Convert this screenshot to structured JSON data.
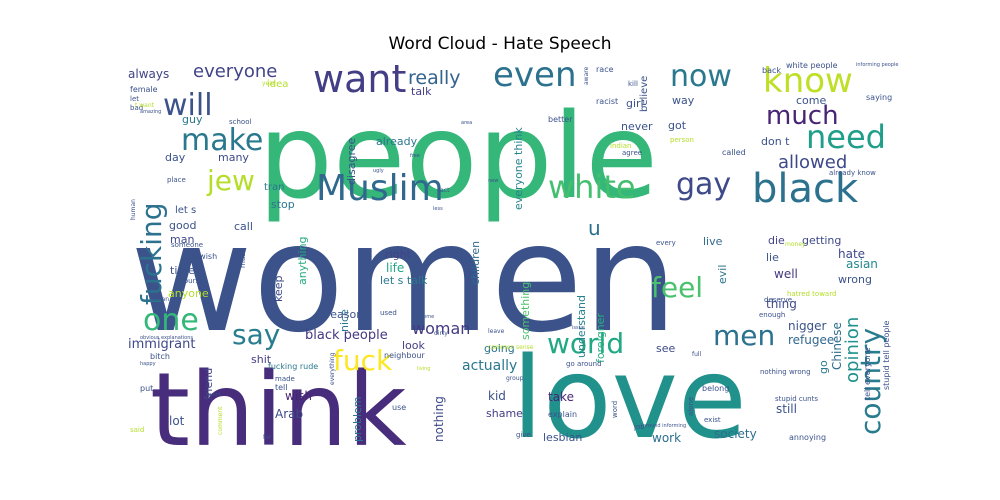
{
  "chart_data": {
    "type": "wordcloud",
    "title": "Word Cloud - Hate Speech",
    "words": [
      {
        "text": "women",
        "weight": 200,
        "color": "#3b528b"
      },
      {
        "text": "people",
        "weight": 190,
        "color": "#35b779"
      },
      {
        "text": "love",
        "weight": 130,
        "color": "#21918c"
      },
      {
        "text": "think",
        "weight": 125,
        "color": "#472d7b"
      },
      {
        "text": "want",
        "weight": 40,
        "color": "#433e85"
      },
      {
        "text": "Muslim",
        "weight": 38,
        "color": "#31688e"
      },
      {
        "text": "even",
        "weight": 36,
        "color": "#2c728e"
      },
      {
        "text": "black",
        "weight": 40,
        "color": "#2c728e"
      },
      {
        "text": "white",
        "weight": 34,
        "color": "#44bf70"
      },
      {
        "text": "gay",
        "weight": 33,
        "color": "#3e4a89"
      },
      {
        "text": "know",
        "weight": 36,
        "color": "#bddf26"
      },
      {
        "text": "now",
        "weight": 32,
        "color": "#2a788e"
      },
      {
        "text": "will",
        "weight": 32,
        "color": "#3b528b"
      },
      {
        "text": "make",
        "weight": 32,
        "color": "#2a788e"
      },
      {
        "text": "jew",
        "weight": 30,
        "color": "#b5de2b"
      },
      {
        "text": "need",
        "weight": 34,
        "color": "#1f9e89"
      },
      {
        "text": "much",
        "weight": 28,
        "color": "#482475"
      },
      {
        "text": "fucking",
        "weight": 30,
        "color": "#2c728e"
      },
      {
        "text": "one",
        "weight": 32,
        "color": "#35b779"
      },
      {
        "text": "say",
        "weight": 30,
        "color": "#287d8e"
      },
      {
        "text": "fuck",
        "weight": 30,
        "color": "#fde725"
      },
      {
        "text": "world",
        "weight": 30,
        "color": "#22a884"
      },
      {
        "text": "men",
        "weight": 30,
        "color": "#2c728e"
      },
      {
        "text": "feel",
        "weight": 30,
        "color": "#4ac16d"
      },
      {
        "text": "country",
        "weight": 30,
        "color": "#297b8e"
      },
      {
        "text": "really",
        "weight": 20,
        "color": "#33638d"
      },
      {
        "text": "everyone",
        "weight": 19,
        "color": "#414487"
      },
      {
        "text": "allowed",
        "weight": 19,
        "color": "#3e4989"
      },
      {
        "text": "woman",
        "weight": 17,
        "color": "#443a83"
      },
      {
        "text": "u",
        "weight": 22,
        "color": "#2d708e"
      },
      {
        "text": "opinion",
        "weight": 19,
        "color": "#21918c"
      },
      {
        "text": "immigrant",
        "weight": 14,
        "color": "#3e4989"
      },
      {
        "text": "black people",
        "weight": 14,
        "color": "#453781"
      },
      {
        "text": "actually",
        "weight": 15,
        "color": "#2a788e"
      },
      {
        "text": "refugee",
        "weight": 13,
        "color": "#31688e"
      },
      {
        "text": "always",
        "weight": 13,
        "color": "#414487"
      },
      {
        "text": "nigger",
        "weight": 13,
        "color": "#3b528b"
      },
      {
        "text": "Chinese",
        "weight": 13,
        "color": "#2e6e8e"
      },
      {
        "text": "foreigner",
        "weight": 12,
        "color": "#29af7f"
      },
      {
        "text": "understand",
        "weight": 12,
        "color": "#26828e"
      },
      {
        "text": "children",
        "weight": 12,
        "color": "#2f6c8e"
      },
      {
        "text": "something",
        "weight": 12,
        "color": "#4ac16d"
      },
      {
        "text": "disagree",
        "weight": 12,
        "color": "#3b528b"
      },
      {
        "text": "everyone think",
        "weight": 12,
        "color": "#25848e"
      },
      {
        "text": "anything",
        "weight": 12,
        "color": "#25ab82"
      },
      {
        "text": "problem",
        "weight": 12,
        "color": "#2c728e"
      },
      {
        "text": "nothing",
        "weight": 13,
        "color": "#3e4a89"
      },
      {
        "text": "society",
        "weight": 13,
        "color": "#2e6e8e"
      },
      {
        "text": "lesbian",
        "weight": 12,
        "color": "#3b528b"
      },
      {
        "text": "getting",
        "weight": 12,
        "color": "#3e4989"
      },
      {
        "text": "asian",
        "weight": 13,
        "color": "#23898e"
      },
      {
        "text": "wrong",
        "weight": 12,
        "color": "#3b528b"
      },
      {
        "text": "talk",
        "weight": 12,
        "color": "#433e85"
      },
      {
        "text": "let s talk",
        "weight": 12,
        "color": "#2a788e"
      },
      {
        "text": "life",
        "weight": 13,
        "color": "#22a884"
      },
      {
        "text": "right",
        "weight": 12,
        "color": "#414487"
      },
      {
        "text": "nice",
        "weight": 12,
        "color": "#2a788e"
      },
      {
        "text": "reason",
        "weight": 12,
        "color": "#3b528b"
      },
      {
        "text": "going",
        "weight": 12,
        "color": "#2c728e"
      },
      {
        "text": "look",
        "weight": 12,
        "color": "#433e85"
      },
      {
        "text": "see",
        "weight": 12,
        "color": "#3e4989"
      },
      {
        "text": "go",
        "weight": 12,
        "color": "#2a788e"
      },
      {
        "text": "thing",
        "weight": 13,
        "color": "#3e4989"
      },
      {
        "text": "lie",
        "weight": 12,
        "color": "#3b528b"
      },
      {
        "text": "well",
        "weight": 13,
        "color": "#453781"
      },
      {
        "text": "die",
        "weight": 12,
        "color": "#414487"
      },
      {
        "text": "live",
        "weight": 12,
        "color": "#31688e"
      },
      {
        "text": "evil",
        "weight": 12,
        "color": "#2c728e"
      },
      {
        "text": "hate",
        "weight": 13,
        "color": "#3e4989"
      },
      {
        "text": "still",
        "weight": 13,
        "color": "#3b528b"
      },
      {
        "text": "work",
        "weight": 13,
        "color": "#2e6e8e"
      },
      {
        "text": "take",
        "weight": 13,
        "color": "#482475"
      },
      {
        "text": "kid",
        "weight": 13,
        "color": "#3b528b"
      },
      {
        "text": "shame",
        "weight": 12,
        "color": "#433e85"
      },
      {
        "text": "wish",
        "weight": 13,
        "color": "#482475"
      },
      {
        "text": "Arab",
        "weight": 13,
        "color": "#3e4a89"
      },
      {
        "text": "lot",
        "weight": 13,
        "color": "#3b528b"
      },
      {
        "text": "friend",
        "weight": 12,
        "color": "#414487"
      },
      {
        "text": "shit",
        "weight": 12,
        "color": "#433e85"
      },
      {
        "text": "anyone",
        "weight": 12,
        "color": "#b5de2b"
      },
      {
        "text": "time",
        "weight": 12,
        "color": "#3b528b"
      },
      {
        "text": "man",
        "weight": 12,
        "color": "#3e4989"
      },
      {
        "text": "good",
        "weight": 12,
        "color": "#3b528b"
      },
      {
        "text": "call",
        "weight": 12,
        "color": "#3b528b"
      },
      {
        "text": "stop",
        "weight": 12,
        "color": "#2a788e"
      },
      {
        "text": "keep",
        "weight": 12,
        "color": "#3e4989"
      },
      {
        "text": "day",
        "weight": 12,
        "color": "#3b528b"
      },
      {
        "text": "many",
        "weight": 12,
        "color": "#3e4989"
      },
      {
        "text": "guy",
        "weight": 12,
        "color": "#2a788e"
      },
      {
        "text": "idea",
        "weight": 11,
        "color": "#b5de2b"
      },
      {
        "text": "tran",
        "weight": 11,
        "color": "#2a788e"
      },
      {
        "text": "already",
        "weight": 12,
        "color": "#2a788e"
      },
      {
        "text": "way",
        "weight": 12,
        "color": "#3b528b"
      },
      {
        "text": "girl",
        "weight": 12,
        "color": "#3b528b"
      },
      {
        "text": "got",
        "weight": 12,
        "color": "#3b528b"
      },
      {
        "text": "never",
        "weight": 12,
        "color": "#3b528b"
      },
      {
        "text": "believe",
        "weight": 11,
        "color": "#3b528b"
      },
      {
        "text": "come",
        "weight": 12,
        "color": "#3b528b"
      },
      {
        "text": "don t",
        "weight": 12,
        "color": "#3b528b"
      },
      {
        "text": "let s",
        "weight": 11,
        "color": "#3b528b"
      },
      {
        "text": "jewish",
        "weight": 8,
        "color": "#3b528b"
      },
      {
        "text": "fucking rude",
        "weight": 8,
        "color": "#2a788e"
      },
      {
        "text": "racist",
        "weight": 8,
        "color": "#3b528b"
      },
      {
        "text": "white people",
        "weight": 8,
        "color": "#3b528b"
      },
      {
        "text": "saying",
        "weight": 8,
        "color": "#3b528b"
      },
      {
        "text": "female",
        "weight": 8,
        "color": "#3b528b"
      },
      {
        "text": "race",
        "weight": 8,
        "color": "#3b528b"
      },
      {
        "text": "back",
        "weight": 8,
        "color": "#3b528b"
      },
      {
        "text": "better",
        "weight": 8,
        "color": "#3b528b"
      },
      {
        "text": "called",
        "weight": 8,
        "color": "#3b528b"
      },
      {
        "text": "neighbour",
        "weight": 8,
        "color": "#3b528b"
      },
      {
        "text": "used",
        "weight": 7,
        "color": "#3b528b"
      },
      {
        "text": "explain",
        "weight": 8,
        "color": "#3b528b"
      },
      {
        "text": "use",
        "weight": 8,
        "color": "#3b528b"
      },
      {
        "text": "annoying",
        "weight": 8,
        "color": "#3b528b"
      },
      {
        "text": "stupid tell people",
        "weight": 8,
        "color": "#3b528b"
      },
      {
        "text": "tell everyone",
        "weight": 8,
        "color": "#3b528b"
      },
      {
        "text": "belong",
        "weight": 8,
        "color": "#3b528b"
      },
      {
        "text": "enough",
        "weight": 7,
        "color": "#3b528b"
      },
      {
        "text": "deserve",
        "weight": 7,
        "color": "#3b528b"
      },
      {
        "text": "nothing wrong",
        "weight": 7,
        "color": "#3b528b"
      },
      {
        "text": "hatred toward",
        "weight": 7,
        "color": "#b5de2b"
      },
      {
        "text": "already know",
        "weight": 7,
        "color": "#3b528b"
      },
      {
        "text": "stupid cunts",
        "weight": 7,
        "color": "#3b528b"
      },
      {
        "text": "bitch",
        "weight": 8,
        "color": "#3b528b"
      },
      {
        "text": "someone",
        "weight": 7,
        "color": "#3b528b"
      },
      {
        "text": "course",
        "weight": 7,
        "color": "#3b528b"
      },
      {
        "text": "must",
        "weight": 7,
        "color": "#3b528b"
      },
      {
        "text": "place",
        "weight": 7,
        "color": "#3b528b"
      },
      {
        "text": "school",
        "weight": 7,
        "color": "#3b528b"
      },
      {
        "text": "tell",
        "weight": 8,
        "color": "#3b528b"
      },
      {
        "text": "made",
        "weight": 7,
        "color": "#3b528b"
      },
      {
        "text": "put",
        "weight": 8,
        "color": "#3b528b"
      },
      {
        "text": "said",
        "weight": 7,
        "color": "#b5de2b"
      },
      {
        "text": "kill",
        "weight": 7,
        "color": "#3b528b"
      },
      {
        "text": "bad",
        "weight": 7,
        "color": "#3b528b"
      },
      {
        "text": "let",
        "weight": 7,
        "color": "#3b528b"
      },
      {
        "text": "agree",
        "weight": 7,
        "color": "#3b528b"
      },
      {
        "text": "indian",
        "weight": 7,
        "color": "#b5de2b"
      },
      {
        "text": "person",
        "weight": 7,
        "color": "#b5de2b"
      },
      {
        "text": "every",
        "weight": 7,
        "color": "#3b528b"
      },
      {
        "text": "exist",
        "weight": 7,
        "color": "#3b528b"
      },
      {
        "text": "alone",
        "weight": 7,
        "color": "#3b528b"
      },
      {
        "text": "job",
        "weight": 7,
        "color": "#3b528b"
      },
      {
        "text": "give",
        "weight": 7,
        "color": "#3b528b"
      },
      {
        "text": "far",
        "weight": 6,
        "color": "#3b528b"
      },
      {
        "text": "mean",
        "weight": 6,
        "color": "#3b528b"
      },
      {
        "text": "human",
        "weight": 6,
        "color": "#3b528b"
      },
      {
        "text": "aware",
        "weight": 6,
        "color": "#3b528b"
      },
      {
        "text": "full",
        "weight": 6,
        "color": "#3b528b"
      },
      {
        "text": "group",
        "weight": 6,
        "color": "#3b528b"
      },
      {
        "text": "everything",
        "weight": 6,
        "color": "#3b528b"
      },
      {
        "text": "year",
        "weight": 6,
        "color": "#b5de2b"
      },
      {
        "text": "word",
        "weight": 7,
        "color": "#3b528b"
      },
      {
        "text": "fact",
        "weight": 6,
        "color": "#3b528b"
      },
      {
        "text": "dirty",
        "weight": 6,
        "color": "#3b528b"
      },
      {
        "text": "money",
        "weight": 6,
        "color": "#b5de2b"
      },
      {
        "text": "go around",
        "weight": 7,
        "color": "#3b528b"
      },
      {
        "text": "common sense",
        "weight": 6,
        "color": "#b5de2b"
      },
      {
        "text": "obvious explanations",
        "weight": 5,
        "color": "#3b528b"
      },
      {
        "text": "amazing",
        "weight": 5,
        "color": "#3b528b"
      },
      {
        "text": "informing people",
        "weight": 5,
        "color": "#3b528b"
      },
      {
        "text": "t want",
        "weight": 6,
        "color": "#b5de2b"
      },
      {
        "text": "comment",
        "weight": 6,
        "color": "#b5de2b"
      },
      {
        "text": "around informing",
        "weight": 5,
        "color": "#3b528b"
      },
      {
        "text": "happy",
        "weight": 5,
        "color": "#3b528b"
      },
      {
        "text": "leave",
        "weight": 6,
        "color": "#3b528b"
      },
      {
        "text": "ugly",
        "weight": 5,
        "color": "#3b528b"
      },
      {
        "text": "new",
        "weight": 5,
        "color": "#3b528b"
      },
      {
        "text": "less",
        "weight": 5,
        "color": "#3b528b"
      },
      {
        "text": "living",
        "weight": 5,
        "color": "#b5de2b"
      },
      {
        "text": "issue",
        "weight": 5,
        "color": "#3b528b"
      },
      {
        "text": "home",
        "weight": 5,
        "color": "#3b528b"
      },
      {
        "text": "area",
        "weight": 5,
        "color": "#3b528b"
      },
      {
        "text": "free",
        "weight": 5,
        "color": "#3b528b"
      },
      {
        "text": "point",
        "weight": 5,
        "color": "#3b528b"
      }
    ]
  }
}
